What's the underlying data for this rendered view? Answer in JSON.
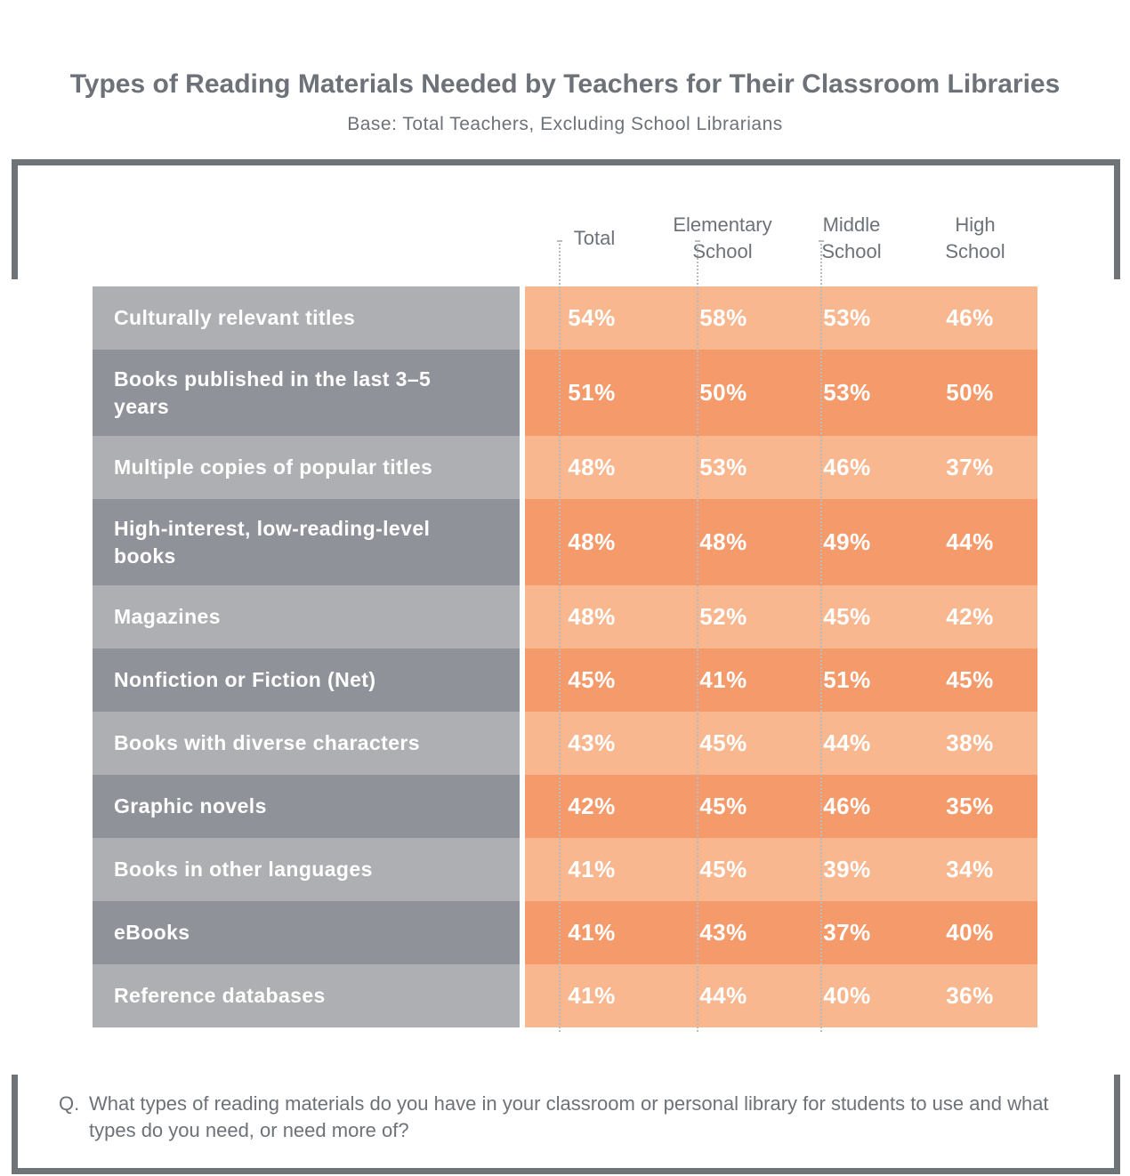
{
  "title": "Types of Reading Materials Needed by Teachers for Their Classroom Libraries",
  "subtitle": "Base: Total Teachers, Excluding School Librarians",
  "chart_data": {
    "type": "table",
    "columns": [
      "Total",
      "Elementary School",
      "Middle School",
      "High School"
    ],
    "column_header_lines": [
      [
        "Total"
      ],
      [
        "Elementary",
        "School"
      ],
      [
        "Middle",
        "School"
      ],
      [
        "High",
        "School"
      ]
    ],
    "rows": [
      {
        "label": "Culturally relevant titles",
        "values": [
          "54%",
          "58%",
          "53%",
          "46%"
        ]
      },
      {
        "label": "Books published in the last 3–5 years",
        "values": [
          "51%",
          "50%",
          "53%",
          "50%"
        ]
      },
      {
        "label": "Multiple copies of popular titles",
        "values": [
          "48%",
          "53%",
          "46%",
          "37%"
        ]
      },
      {
        "label": "High-interest, low-reading-level books",
        "values": [
          "48%",
          "48%",
          "49%",
          "44%"
        ]
      },
      {
        "label": "Magazines",
        "values": [
          "48%",
          "52%",
          "45%",
          "42%"
        ]
      },
      {
        "label": "Nonfiction or Fiction (Net)",
        "values": [
          "45%",
          "41%",
          "51%",
          "45%"
        ]
      },
      {
        "label": "Books with diverse characters",
        "values": [
          "43%",
          "45%",
          "44%",
          "38%"
        ]
      },
      {
        "label": "Graphic novels",
        "values": [
          "42%",
          "45%",
          "46%",
          "35%"
        ]
      },
      {
        "label": "Books in other languages",
        "values": [
          "41%",
          "45%",
          "39%",
          "34%"
        ]
      },
      {
        "label": "eBooks",
        "values": [
          "41%",
          "43%",
          "37%",
          "40%"
        ]
      },
      {
        "label": "Reference databases",
        "values": [
          "41%",
          "44%",
          "40%",
          "36%"
        ]
      }
    ]
  },
  "question": {
    "prefix": "Q.",
    "text": "What types of reading materials do you have in your classroom or personal library for students to use and what types do you need, or need more of?"
  },
  "colors": {
    "label_light": "#aeafb3",
    "label_dark": "#8f9299",
    "value_light": "#f8b78f",
    "value_dark": "#f59a6b",
    "frame": "#6f7479",
    "text": "#6d7278"
  }
}
